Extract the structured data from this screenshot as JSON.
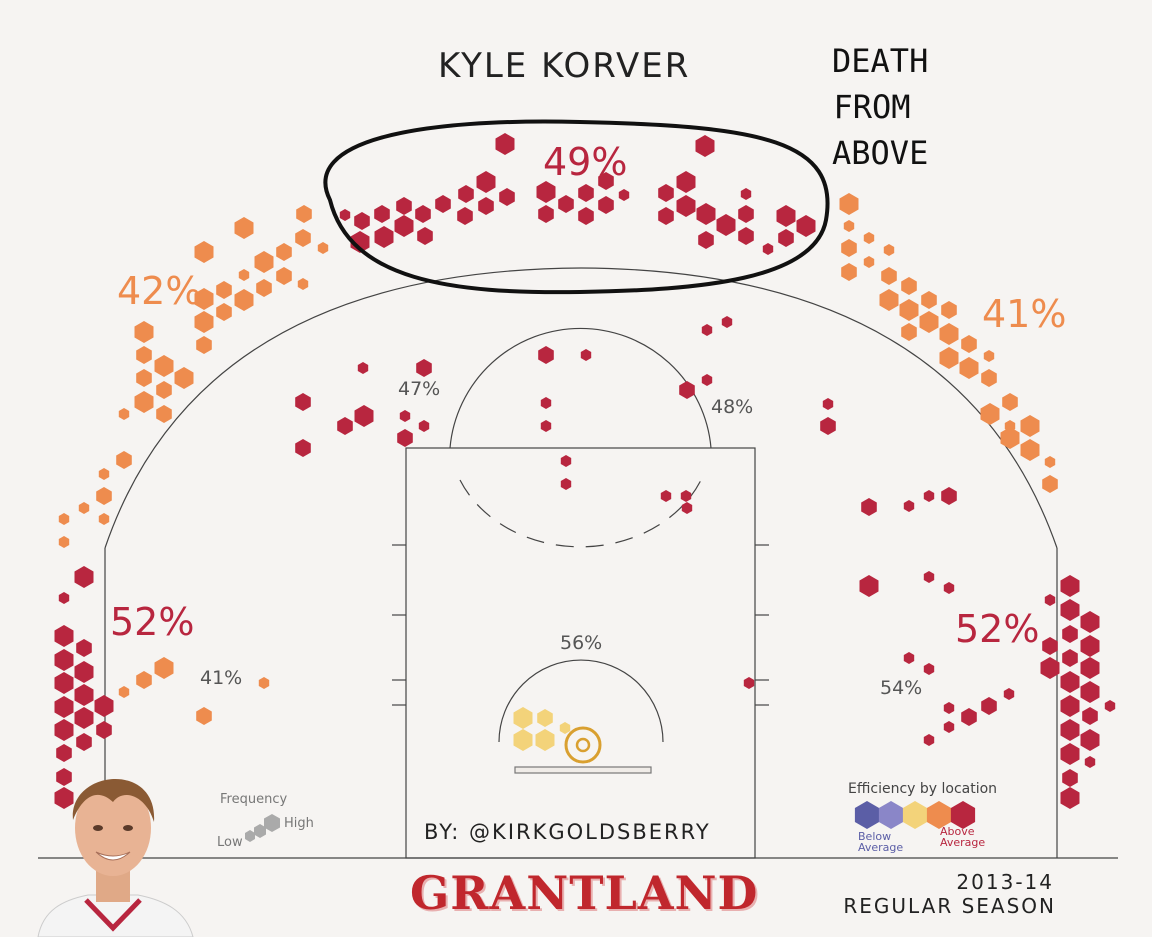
{
  "header": {
    "player_name": "KYLE KORVER",
    "tagline": [
      "DEATH",
      "FROM",
      "ABOVE"
    ]
  },
  "byline": "BY: @KIRKGOLDSBERRY",
  "brand": "GRANTLAND",
  "season": {
    "year": "2013-14",
    "type": "REGULAR SEASON"
  },
  "legends": {
    "frequency": {
      "title": "Frequency",
      "low": "Low",
      "high": "High"
    },
    "efficiency": {
      "title": "Efficiency by location",
      "below": "Below Average",
      "above": "Above Average",
      "scale_colors": [
        "#5b5ea6",
        "#8a86c8",
        "#f3d37a",
        "#ee8c4e",
        "#b8263f"
      ]
    }
  },
  "colors": {
    "above": "#b8263f",
    "orange": "#ee8c4e",
    "below_mid": "#f3d37a",
    "court_line": "#444444"
  },
  "chart_data": {
    "type": "heatmap",
    "title": "KYLE KORVER",
    "zones": [
      {
        "name": "top of the arc three",
        "pct": "49%",
        "efficiency": "above"
      },
      {
        "name": "left wing three",
        "pct": "42%",
        "efficiency": "above"
      },
      {
        "name": "right wing three",
        "pct": "41%",
        "efficiency": "above"
      },
      {
        "name": "left corner three",
        "pct": "52%",
        "efficiency": "above"
      },
      {
        "name": "right corner three",
        "pct": "52%",
        "efficiency": "above"
      },
      {
        "name": "left elbow",
        "pct": "47%",
        "efficiency": "above"
      },
      {
        "name": "right elbow",
        "pct": "48%",
        "efficiency": "above"
      },
      {
        "name": "left baseline mid-range",
        "pct": "41%",
        "efficiency": "average"
      },
      {
        "name": "right baseline mid-range",
        "pct": "54%",
        "efficiency": "above"
      },
      {
        "name": "restricted area",
        "pct": "56%",
        "efficiency": "average"
      }
    ]
  }
}
